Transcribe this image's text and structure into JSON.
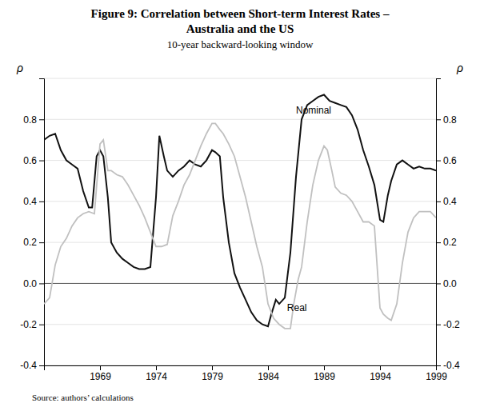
{
  "chart_data": {
    "type": "line",
    "title": [
      "Figure 9: Correlation between Short-term Interest Rates –",
      "Australia and the US"
    ],
    "subtitle": "10-year backward-looking window",
    "source": "Source: authors’ calculations",
    "ylabel": "ρ",
    "y2label": "ρ",
    "xlim": [
      1964,
      1999
    ],
    "xticks": [
      {
        "value": 1964,
        "label": null
      },
      1969,
      1974,
      1979,
      1984,
      1989,
      1994,
      1999
    ],
    "ylim": [
      -0.4,
      1.0
    ],
    "yticks": [
      -0.4,
      -0.2,
      {
        "value": 0.0,
        "label": "0.0"
      },
      0.2,
      0.4,
      0.6,
      0.8,
      {
        "value": 1.0,
        "label": null
      }
    ],
    "y2lim": [
      -0.4,
      1.0
    ],
    "y2ticks": [
      -0.4,
      -0.2,
      {
        "value": 0.0,
        "label": "0.0"
      },
      0.2,
      0.4,
      0.6,
      0.8,
      {
        "value": 1.0,
        "label": null
      }
    ],
    "grid": true,
    "series": [
      {
        "name": "Nominal",
        "color": "#111111",
        "x": [
          1964.0,
          1964.5,
          1965.0,
          1965.5,
          1966.0,
          1966.5,
          1967.0,
          1967.5,
          1968.0,
          1968.3,
          1968.7,
          1969.0,
          1969.3,
          1969.7,
          1970.0,
          1970.5,
          1971.0,
          1971.5,
          1972.0,
          1972.5,
          1973.0,
          1973.5,
          1974.0,
          1974.3,
          1974.7,
          1975.0,
          1975.5,
          1976.0,
          1976.5,
          1977.0,
          1977.5,
          1978.0,
          1978.5,
          1979.0,
          1979.3,
          1979.7,
          1980.0,
          1980.5,
          1981.0,
          1981.5,
          1982.0,
          1982.5,
          1983.0,
          1983.5,
          1984.0,
          1984.3,
          1984.7,
          1985.0,
          1985.5,
          1986.0,
          1986.5,
          1987.0,
          1987.5,
          1988.0,
          1988.5,
          1989.0,
          1989.5,
          1990.0,
          1990.5,
          1991.0,
          1991.5,
          1992.0,
          1992.5,
          1993.0,
          1993.5,
          1994.0,
          1994.3,
          1994.7,
          1995.0,
          1995.5,
          1996.0,
          1996.5,
          1997.0,
          1997.5,
          1998.0,
          1998.5,
          1999.0
        ],
        "values": [
          0.7,
          0.72,
          0.73,
          0.65,
          0.6,
          0.58,
          0.56,
          0.45,
          0.37,
          0.37,
          0.62,
          0.65,
          0.62,
          0.42,
          0.2,
          0.15,
          0.12,
          0.1,
          0.08,
          0.07,
          0.07,
          0.08,
          0.42,
          0.72,
          0.62,
          0.55,
          0.52,
          0.55,
          0.57,
          0.6,
          0.58,
          0.57,
          0.6,
          0.65,
          0.64,
          0.62,
          0.42,
          0.2,
          0.05,
          -0.02,
          -0.08,
          -0.14,
          -0.18,
          -0.2,
          -0.21,
          -0.15,
          -0.08,
          -0.1,
          -0.07,
          0.15,
          0.52,
          0.8,
          0.87,
          0.89,
          0.91,
          0.92,
          0.89,
          0.88,
          0.87,
          0.86,
          0.82,
          0.75,
          0.65,
          0.57,
          0.48,
          0.31,
          0.3,
          0.43,
          0.5,
          0.58,
          0.6,
          0.58,
          0.56,
          0.57,
          0.56,
          0.56,
          0.55
        ]
      },
      {
        "name": "Real",
        "color": "#c0c0c0",
        "x": [
          1964.0,
          1964.5,
          1965.0,
          1965.5,
          1966.0,
          1966.5,
          1967.0,
          1967.5,
          1968.0,
          1968.5,
          1969.0,
          1969.3,
          1969.7,
          1970.0,
          1970.5,
          1971.0,
          1971.5,
          1972.0,
          1972.5,
          1973.0,
          1973.5,
          1974.0,
          1974.5,
          1975.0,
          1975.5,
          1976.0,
          1976.5,
          1977.0,
          1977.5,
          1978.0,
          1978.5,
          1979.0,
          1979.3,
          1979.7,
          1980.0,
          1980.5,
          1981.0,
          1981.5,
          1982.0,
          1982.5,
          1983.0,
          1983.5,
          1984.0,
          1984.5,
          1985.0,
          1985.5,
          1986.0,
          1986.3,
          1986.7,
          1987.0,
          1987.5,
          1988.0,
          1988.5,
          1989.0,
          1989.3,
          1989.7,
          1990.0,
          1990.5,
          1991.0,
          1991.5,
          1992.0,
          1992.5,
          1993.0,
          1993.5,
          1994.0,
          1994.3,
          1994.7,
          1995.0,
          1995.5,
          1996.0,
          1996.5,
          1997.0,
          1997.5,
          1998.0,
          1998.5,
          1999.0
        ],
        "values": [
          -0.1,
          -0.07,
          0.09,
          0.18,
          0.22,
          0.28,
          0.32,
          0.34,
          0.35,
          0.34,
          0.68,
          0.7,
          0.55,
          0.55,
          0.53,
          0.52,
          0.48,
          0.43,
          0.38,
          0.32,
          0.25,
          0.18,
          0.18,
          0.19,
          0.33,
          0.4,
          0.48,
          0.53,
          0.6,
          0.67,
          0.73,
          0.78,
          0.78,
          0.75,
          0.73,
          0.68,
          0.62,
          0.52,
          0.42,
          0.3,
          0.18,
          0.08,
          -0.1,
          -0.17,
          -0.2,
          -0.22,
          -0.22,
          -0.1,
          0.02,
          0.08,
          0.3,
          0.48,
          0.6,
          0.67,
          0.65,
          0.55,
          0.47,
          0.44,
          0.43,
          0.4,
          0.35,
          0.3,
          0.3,
          0.28,
          -0.12,
          -0.15,
          -0.17,
          -0.18,
          -0.1,
          0.1,
          0.25,
          0.32,
          0.35,
          0.35,
          0.35,
          0.32
        ]
      }
    ],
    "annotations": [
      {
        "text": "Nominal",
        "x": 1986.5,
        "y": 0.83
      },
      {
        "text": "Real",
        "x": 1985.7,
        "y": -0.135
      }
    ]
  }
}
